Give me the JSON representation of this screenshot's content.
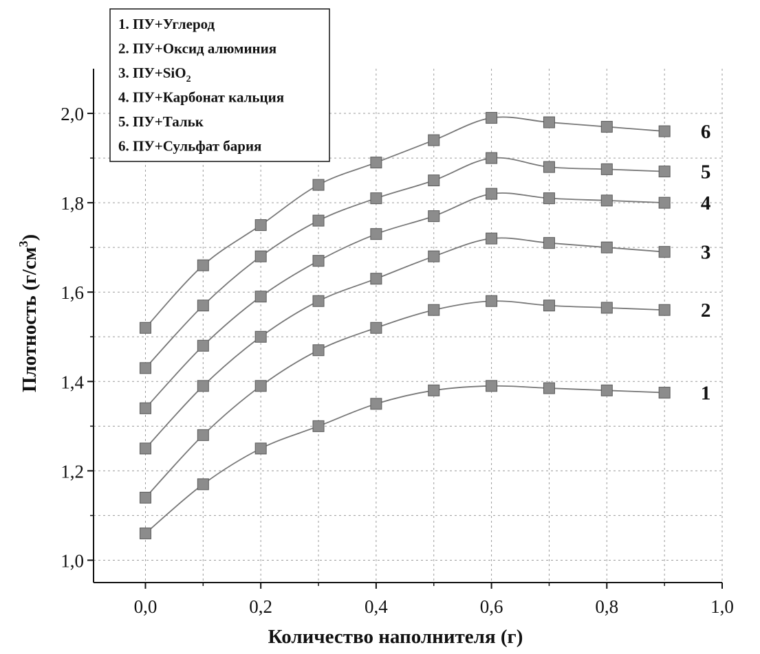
{
  "chart_data": {
    "type": "line",
    "xlabel": "Количество наполнителя (г)",
    "ylabel": "Плотность (г/см",
    "ylabel_sup": "3",
    "ylabel_close": ")",
    "xlim": [
      -0.09,
      1.0
    ],
    "ylim": [
      0.95,
      2.1
    ],
    "xticks": [
      0.0,
      0.2,
      0.4,
      0.6,
      0.8,
      1.0
    ],
    "xtick_labels": [
      "0,0",
      "0,2",
      "0,4",
      "0,6",
      "0,8",
      "1,0"
    ],
    "x_minor_grid": [
      0.0,
      0.1,
      0.2,
      0.3,
      0.4,
      0.5,
      0.6,
      0.7,
      0.8,
      0.9,
      1.0
    ],
    "yticks": [
      1.0,
      1.2,
      1.4,
      1.6,
      1.8,
      2.0
    ],
    "ytick_labels": [
      "1,0",
      "1,2",
      "1,4",
      "1,6",
      "1,8",
      "2,0"
    ],
    "y_minor_grid": [
      1.1,
      1.3,
      1.5,
      1.7,
      1.9
    ],
    "grid": true,
    "legend_position": "top-left",
    "x": [
      0.0,
      0.1,
      0.2,
      0.3,
      0.4,
      0.5,
      0.6,
      0.7,
      0.8,
      0.9
    ],
    "series": [
      {
        "name": "1.  ПУ+Углерод",
        "end_label": "1",
        "values": [
          1.06,
          1.17,
          1.25,
          1.3,
          1.35,
          1.38,
          1.39,
          1.385,
          1.38,
          1.375
        ]
      },
      {
        "name": "2.  ПУ+Оксид алюминия",
        "end_label": "2",
        "values": [
          1.14,
          1.28,
          1.39,
          1.47,
          1.52,
          1.56,
          1.58,
          1.57,
          1.565,
          1.56
        ]
      },
      {
        "name": "3.  ПУ+SiO",
        "name_sub": "2",
        "end_label": "3",
        "values": [
          1.25,
          1.39,
          1.5,
          1.58,
          1.63,
          1.68,
          1.72,
          1.71,
          1.7,
          1.69
        ]
      },
      {
        "name": "4.  ПУ+Карбонат кальция",
        "end_label": "4",
        "values": [
          1.34,
          1.48,
          1.59,
          1.67,
          1.73,
          1.77,
          1.82,
          1.81,
          1.805,
          1.8
        ]
      },
      {
        "name": "5.  ПУ+Тальк",
        "end_label": "5",
        "values": [
          1.43,
          1.57,
          1.68,
          1.76,
          1.81,
          1.85,
          1.9,
          1.88,
          1.875,
          1.87
        ]
      },
      {
        "name": "6.  ПУ+Сульфат бария",
        "end_label": "6",
        "values": [
          1.52,
          1.66,
          1.75,
          1.84,
          1.89,
          1.94,
          1.99,
          1.98,
          1.97,
          1.96
        ]
      }
    ],
    "colors": {
      "line": "#777777",
      "marker": "#8c8c8c",
      "marker_edge": "#5a5a5a",
      "grid": "#9a9a9a",
      "axis": "#111111"
    }
  }
}
